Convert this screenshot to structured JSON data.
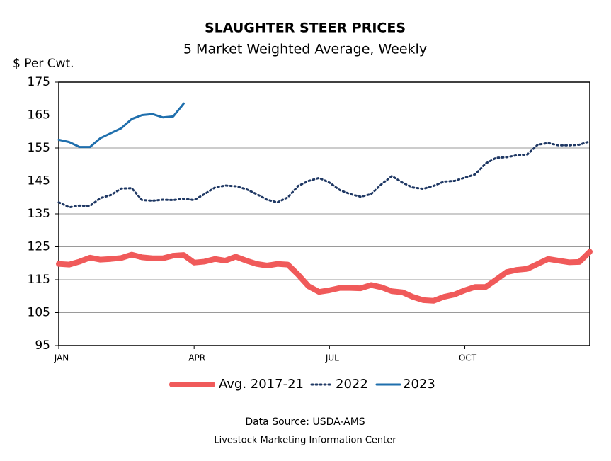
{
  "chart_data": {
    "type": "line",
    "title": "SLAUGHTER STEER PRICES",
    "subtitle": "5 Market Weighted Average, Weekly",
    "y_label": "$ Per Cwt.",
    "source": "Data Source:  USDA-AMS",
    "credit": "Livestock Marketing Information Center",
    "x": [
      1,
      2,
      3,
      4,
      5,
      6,
      7,
      8,
      9,
      10,
      11,
      12,
      13,
      14,
      15,
      16,
      17,
      18,
      19,
      20,
      21,
      22,
      23,
      24,
      25,
      26,
      27,
      28,
      29,
      30,
      31,
      32,
      33,
      34,
      35,
      36,
      37,
      38,
      39,
      40,
      41,
      42,
      43,
      44,
      45,
      46,
      47,
      48,
      49,
      50,
      51,
      52
    ],
    "xlim": [
      1,
      52
    ],
    "xticks": [
      {
        "value": 1,
        "label": "JAN"
      },
      {
        "value": 14,
        "label": "APR"
      },
      {
        "value": 27,
        "label": "JUL"
      },
      {
        "value": 40,
        "label": "OCT"
      }
    ],
    "ylim": [
      95,
      175
    ],
    "yticks": [
      95,
      105,
      115,
      125,
      135,
      145,
      155,
      165,
      175
    ],
    "grid": true,
    "series": [
      {
        "name": "Avg. 2017-21",
        "color": "#f05a5a",
        "style": "thick",
        "values": [
          119.8,
          119.6,
          120.5,
          121.7,
          121.1,
          121.3,
          121.6,
          122.6,
          121.8,
          121.5,
          121.5,
          122.3,
          122.5,
          120.2,
          120.5,
          121.3,
          120.8,
          122.0,
          120.8,
          119.8,
          119.3,
          119.8,
          119.6,
          116.5,
          113.0,
          111.3,
          111.8,
          112.5,
          112.5,
          112.4,
          113.4,
          112.7,
          111.5,
          111.2,
          109.8,
          108.8,
          108.6,
          109.8,
          110.5,
          111.8,
          112.8,
          112.8,
          115.0,
          117.3,
          118.0,
          118.3,
          119.8,
          121.3,
          120.8,
          120.3,
          120.4,
          123.5
        ]
      },
      {
        "name": "2022",
        "color": "#1f3864",
        "style": "dotted",
        "values": [
          138.5,
          137.0,
          137.5,
          137.4,
          139.8,
          140.7,
          142.7,
          142.8,
          139.2,
          139.0,
          139.3,
          139.2,
          139.6,
          139.2,
          141.0,
          143.0,
          143.6,
          143.4,
          142.5,
          141.0,
          139.3,
          138.5,
          140.0,
          143.5,
          145.0,
          145.9,
          144.5,
          142.2,
          141.0,
          140.2,
          141.0,
          144.0,
          146.5,
          144.5,
          143.0,
          142.6,
          143.5,
          144.8,
          145.0,
          146.0,
          147.0,
          150.3,
          152.0,
          152.2,
          152.8,
          153.0,
          156.0,
          156.5,
          155.8,
          155.8,
          156.0,
          157.0
        ]
      },
      {
        "name": "2023",
        "color": "#1f6fad",
        "style": "solid",
        "values": [
          157.5,
          156.8,
          155.3,
          155.3,
          158.0,
          159.5,
          161.0,
          163.8,
          165.0,
          165.3,
          164.3,
          164.6,
          168.5,
          null,
          null,
          null,
          null,
          null,
          null,
          null,
          null,
          null,
          null,
          null,
          null,
          null,
          null,
          null,
          null,
          null,
          null,
          null,
          null,
          null,
          null,
          null,
          null,
          null,
          null,
          null,
          null,
          null,
          null,
          null,
          null,
          null,
          null,
          null,
          null,
          null,
          null,
          null
        ]
      }
    ]
  }
}
